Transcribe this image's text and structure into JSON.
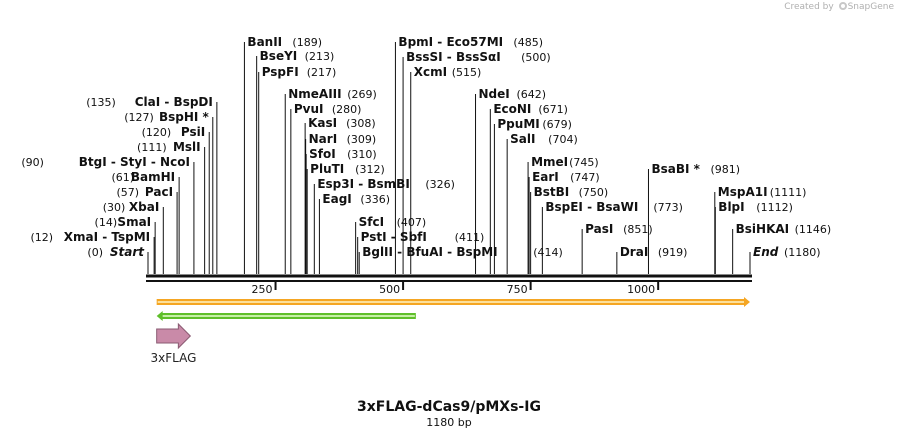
{
  "credit": {
    "prefix": "Created by",
    "brand": "SnapGene"
  },
  "map": {
    "name": "3xFLAG-dCas9/pMXs-IG",
    "length_label": "1180 bp",
    "length": 1180
  },
  "ticks": [
    {
      "pos": 250,
      "label": "250"
    },
    {
      "pos": 500,
      "label": "500"
    },
    {
      "pos": 750,
      "label": "750"
    },
    {
      "pos": 1000,
      "label": "1000"
    }
  ],
  "sites": [
    {
      "text": "Start",
      "pos_label": "(0)",
      "positions": [
        0
      ],
      "side": "left",
      "italic": true
    },
    {
      "text": "XmaI  - TspMI",
      "pos_label": "(12)",
      "positions": [
        12
      ],
      "side": "left"
    },
    {
      "text": "SmaI",
      "pos_label": "(14)",
      "positions": [
        14
      ],
      "side": "left"
    },
    {
      "text": "XbaI",
      "pos_label": "(30)",
      "positions": [
        30
      ],
      "side": "left"
    },
    {
      "text": "PacI",
      "pos_label": "(57)",
      "positions": [
        57
      ],
      "side": "left"
    },
    {
      "text": "BamHI",
      "pos_label": "(61)",
      "positions": [
        61
      ],
      "side": "left"
    },
    {
      "text": "BtgI  - StyI  - NcoI",
      "pos_label": "(90)",
      "positions": [
        90
      ],
      "side": "left"
    },
    {
      "text": "MslI",
      "pos_label": "(111)",
      "positions": [
        111
      ],
      "side": "left"
    },
    {
      "text": "PsiI",
      "pos_label": "(120)",
      "positions": [
        120
      ],
      "side": "left"
    },
    {
      "text": "BspHI *",
      "pos_label": "(127)",
      "positions": [
        127
      ],
      "side": "left"
    },
    {
      "text": "ClaI  - BspDI",
      "pos_label": "(135)",
      "positions": [
        135
      ],
      "side": "left"
    },
    {
      "text": "BanII",
      "pos_label": "(189)",
      "positions": [
        189
      ],
      "side": "right"
    },
    {
      "text": "BseYI",
      "pos_label": "(213)",
      "positions": [
        213
      ],
      "side": "right"
    },
    {
      "text": "PspFI",
      "pos_label": "(217)",
      "positions": [
        217
      ],
      "side": "right"
    },
    {
      "text": "NmeAIII",
      "pos_label": "(269)",
      "positions": [
        269
      ],
      "side": "right"
    },
    {
      "text": "PvuI",
      "pos_label": "(280)",
      "positions": [
        280
      ],
      "side": "right"
    },
    {
      "text": "KasI",
      "pos_label": "(308)",
      "positions": [
        308
      ],
      "side": "right"
    },
    {
      "text": "NarI",
      "pos_label": "(309)",
      "positions": [
        309
      ],
      "side": "right"
    },
    {
      "text": "SfoI",
      "pos_label": "(310)",
      "positions": [
        310
      ],
      "side": "right"
    },
    {
      "text": "PluTI",
      "pos_label": "(312)",
      "positions": [
        312
      ],
      "side": "right"
    },
    {
      "text": "Esp3I  - BsmBI",
      "pos_label": "(326)",
      "positions": [
        326
      ],
      "side": "right"
    },
    {
      "text": "EagI",
      "pos_label": "(336)",
      "positions": [
        336
      ],
      "side": "right"
    },
    {
      "text": "SfcI",
      "pos_label": "(407)",
      "positions": [
        407
      ],
      "side": "right"
    },
    {
      "text": "PstI  - SbfI",
      "pos_label": "(411)",
      "positions": [
        411
      ],
      "side": "right"
    },
    {
      "text": "BglII  - BfuAI  - BspMI",
      "pos_label": "(414)",
      "positions": [
        414
      ],
      "side": "right"
    },
    {
      "text": "BpmI  - Eco57MI",
      "pos_label": "(485)",
      "positions": [
        485
      ],
      "side": "right"
    },
    {
      "text": "BssSI  - BssSαI",
      "pos_label": "(500)",
      "positions": [
        500
      ],
      "side": "right"
    },
    {
      "text": "XcmI",
      "pos_label": "(515)",
      "positions": [
        515
      ],
      "side": "right"
    },
    {
      "text": "NdeI",
      "pos_label": "(642)",
      "positions": [
        642
      ],
      "side": "right"
    },
    {
      "text": "EcoNI",
      "pos_label": "(671)",
      "positions": [
        671
      ],
      "side": "right"
    },
    {
      "text": "PpuMI",
      "pos_label": "(679)",
      "positions": [
        679
      ],
      "side": "right"
    },
    {
      "text": "SalI",
      "pos_label": "(704)",
      "positions": [
        704
      ],
      "side": "right"
    },
    {
      "text": "MmeI",
      "pos_label": "(745)",
      "positions": [
        745
      ],
      "side": "right"
    },
    {
      "text": "EarI",
      "pos_label": "(747)",
      "positions": [
        747
      ],
      "side": "right"
    },
    {
      "text": "BstBI",
      "pos_label": "(750)",
      "positions": [
        750
      ],
      "side": "right"
    },
    {
      "text": "BspEI  - BsaWI",
      "pos_label": "(773)",
      "positions": [
        773
      ],
      "side": "right"
    },
    {
      "text": "PasI",
      "pos_label": "(851)",
      "positions": [
        851
      ],
      "side": "right"
    },
    {
      "text": "DraI",
      "pos_label": "(919)",
      "positions": [
        919
      ],
      "side": "right"
    },
    {
      "text": "BsaBI *",
      "pos_label": "(981)",
      "positions": [
        981
      ],
      "side": "right"
    },
    {
      "text": "MspA1I",
      "pos_label": "(1111)",
      "positions": [
        1111
      ],
      "side": "right"
    },
    {
      "text": "BlpI",
      "pos_label": "(1112)",
      "positions": [
        1112
      ],
      "side": "right"
    },
    {
      "text": "BsiHKAI",
      "pos_label": "(1146)",
      "positions": [
        1146
      ],
      "side": "right"
    },
    {
      "text": "End",
      "pos_label": "(1180)",
      "positions": [
        1180
      ],
      "side": "right",
      "italic": true
    }
  ],
  "features": [
    {
      "kind": "orf-arrow",
      "start": 17,
      "end": 1180,
      "direction": "forward",
      "color": "#f5a623",
      "inner": "#fff3c4"
    },
    {
      "kind": "orf-arrow",
      "start": 17,
      "end": 525,
      "direction": "reverse",
      "color": "#5fbf2a",
      "inner": "#e8ffd0"
    },
    {
      "kind": "feature",
      "name": "3xFLAG",
      "start": 17,
      "end": 83,
      "direction": "forward",
      "color": "#c98aa8"
    }
  ]
}
